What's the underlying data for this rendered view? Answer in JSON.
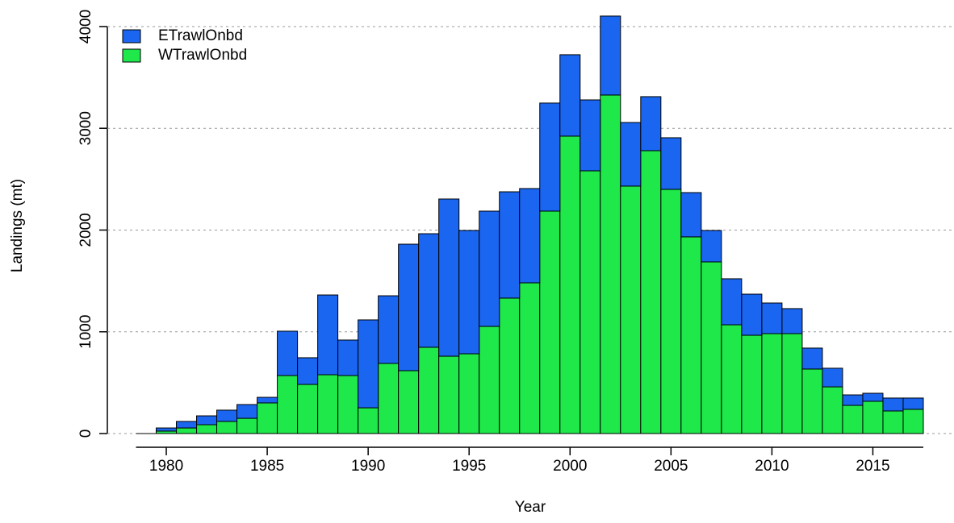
{
  "chart_data": {
    "type": "bar",
    "stacked": true,
    "x_label": "Year",
    "y_label": "Landings (mt)",
    "x": [
      1980,
      1981,
      1982,
      1983,
      1984,
      1985,
      1986,
      1987,
      1988,
      1989,
      1990,
      1991,
      1992,
      1993,
      1994,
      1995,
      1996,
      1997,
      1998,
      1999,
      2000,
      2001,
      2002,
      2003,
      2004,
      2005,
      2006,
      2007,
      2008,
      2009,
      2010,
      2011,
      2012,
      2013,
      2014,
      2015,
      2016,
      2017
    ],
    "series": [
      {
        "name": "ETrawlOnbd",
        "color": "#1a66f0",
        "values": [
          31,
          64,
          87,
          111,
          135,
          55,
          436,
          262,
          784,
          349,
          864,
          665,
          1243,
          1116,
          1545,
          1212,
          1133,
          1045,
          927,
          1062,
          800,
          697,
          776,
          625,
          531,
          507,
          435,
          309,
          452,
          404,
          301,
          246,
          206,
          183,
          103,
          79,
          127,
          111
        ]
      },
      {
        "name": "WTrawlOnbd",
        "color": "#1ee84a",
        "values": [
          24,
          55,
          87,
          119,
          150,
          301,
          570,
          483,
          578,
          570,
          253,
          689,
          618,
          848,
          760,
          784,
          1053,
          1331,
          1481,
          2186,
          2923,
          2582,
          3327,
          2432,
          2780,
          2400,
          1933,
          1687,
          1069,
          966,
          982,
          982,
          634,
          459,
          277,
          317,
          222,
          238
        ]
      }
    ],
    "xlim": [
      1978.5,
      2017.5
    ],
    "xticks": [
      1980,
      1985,
      1990,
      1995,
      2000,
      2005,
      2010,
      2015
    ],
    "ylim": [
      0,
      4150
    ],
    "yticks": [
      0,
      1000,
      2000,
      3000,
      4000
    ],
    "grid": true,
    "legend": "top-left"
  }
}
